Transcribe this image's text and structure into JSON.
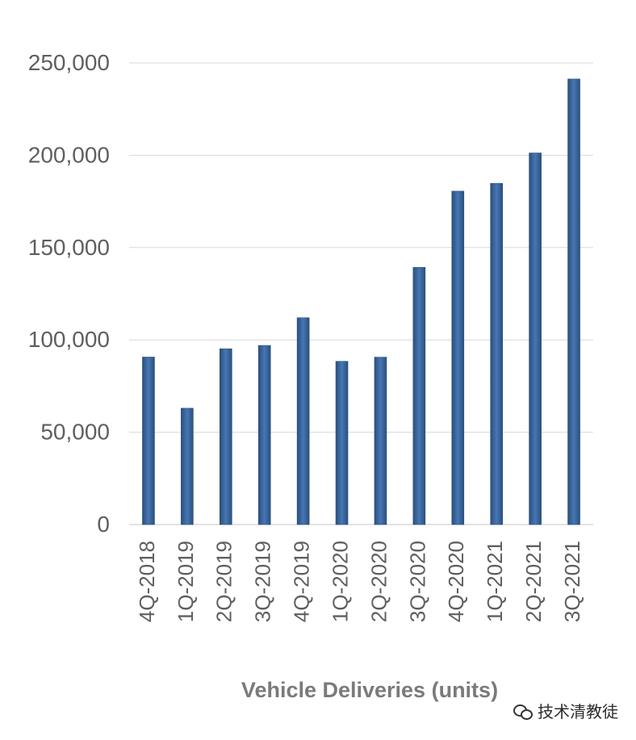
{
  "chart_data": {
    "type": "bar",
    "categories": [
      "4Q-2018",
      "1Q-2019",
      "2Q-2019",
      "3Q-2019",
      "4Q-2019",
      "1Q-2020",
      "2Q-2020",
      "3Q-2020",
      "4Q-2020",
      "1Q-2021",
      "2Q-2021",
      "3Q-2021"
    ],
    "values": [
      90700,
      63000,
      95200,
      97000,
      112000,
      88400,
      90650,
      139300,
      180570,
      184800,
      201250,
      241300
    ],
    "title": "Vehicle Deliveries (units)",
    "xlabel": "",
    "ylabel": "",
    "ylim": [
      0,
      250000
    ],
    "yticks": [
      0,
      50000,
      100000,
      150000,
      200000,
      250000
    ],
    "ytick_labels": [
      "0",
      "50,000",
      "100,000",
      "150,000",
      "200,000",
      "250,000"
    ],
    "grid": true,
    "legend": "none",
    "colors": {
      "bar": "#3f6aa4",
      "bar_edge": "#2b4f7d",
      "grid": "#d9d9d9",
      "axis_text": "#5f5f5f",
      "title_text": "#7a7a7a"
    }
  },
  "watermark": {
    "icon": "wechat-icon",
    "text": "技术清教徒"
  }
}
